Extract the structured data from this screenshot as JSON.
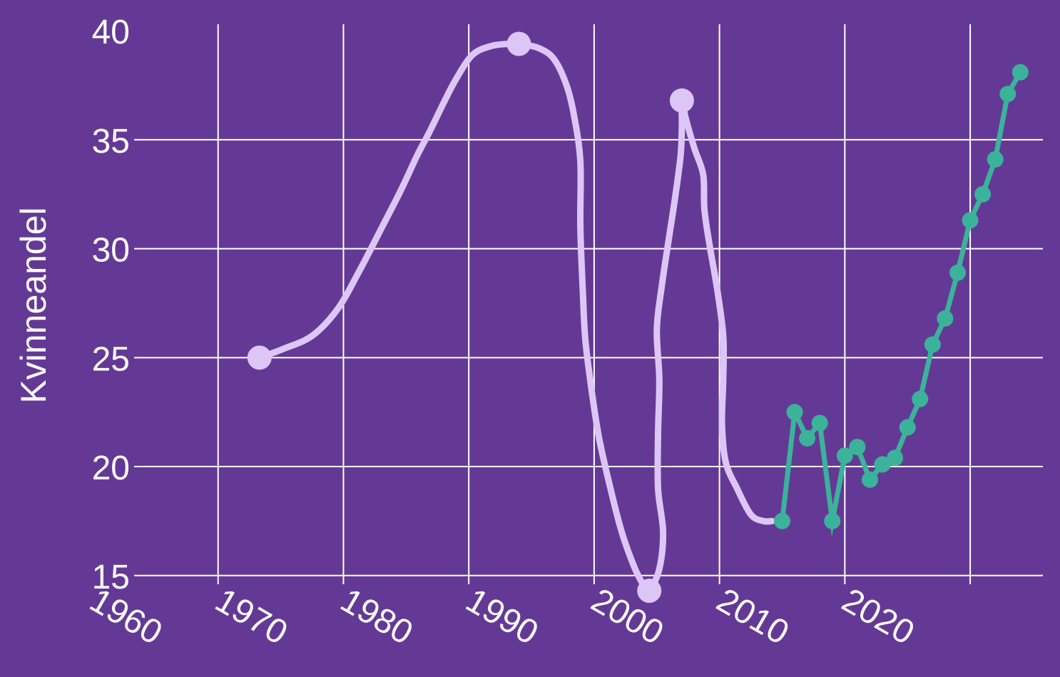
{
  "chart_data": {
    "type": "line",
    "ylabel": "Kvinneandel",
    "xlabel": "",
    "xlim": [
      1953.3,
      2025.8
    ],
    "ylim": [
      14.6,
      40.3
    ],
    "x_ticks": [
      "1960",
      "1970",
      "1980",
      "1990",
      "2000",
      "2010",
      "2020"
    ],
    "y_ticks": [
      "15",
      "20",
      "25",
      "30",
      "35",
      "40"
    ],
    "grid": true,
    "colors": {
      "background": "#643996",
      "grid": "#ffffff",
      "sketch": "#dcc6f6",
      "data": "#3bb39b"
    },
    "series": [
      {
        "style": "hand-drawn",
        "anchor_points": [
          {
            "x": 1963.3,
            "y": 25.0
          },
          {
            "x": 1984.0,
            "y": 39.4
          },
          {
            "x": 1994.4,
            "y": 14.3
          },
          {
            "x": 1997.0,
            "y": 36.8
          }
        ],
        "path": [
          [
            1963.3,
            25.0
          ],
          [
            1965.2,
            25.4
          ],
          [
            1967.5,
            26.0
          ],
          [
            1969.5,
            27.2
          ],
          [
            1971.2,
            28.9
          ],
          [
            1973.0,
            30.9
          ],
          [
            1974.6,
            32.7
          ],
          [
            1975.9,
            34.3
          ],
          [
            1976.9,
            35.4
          ],
          [
            1978.0,
            36.7
          ],
          [
            1979.0,
            37.8
          ],
          [
            1980.3,
            38.9
          ],
          [
            1981.8,
            39.3
          ],
          [
            1983.2,
            39.4
          ],
          [
            1984.0,
            39.4
          ],
          [
            1985.6,
            39.2
          ],
          [
            1986.8,
            38.7
          ],
          [
            1987.8,
            37.5
          ],
          [
            1988.4,
            36.1
          ],
          [
            1988.9,
            34.0
          ],
          [
            1988.9,
            31.0
          ],
          [
            1989.1,
            28.0
          ],
          [
            1989.3,
            25.8
          ],
          [
            1989.8,
            23.5
          ],
          [
            1990.4,
            21.3
          ],
          [
            1991.3,
            19.0
          ],
          [
            1992.2,
            17.0
          ],
          [
            1993.2,
            15.4
          ],
          [
            1994.0,
            14.5
          ],
          [
            1994.4,
            14.3
          ],
          [
            1995.2,
            15.3
          ],
          [
            1995.5,
            17.0
          ],
          [
            1995.1,
            19.0
          ],
          [
            1995.1,
            21.5
          ],
          [
            1995.2,
            24.0
          ],
          [
            1995.0,
            26.3
          ],
          [
            1995.4,
            28.3
          ],
          [
            1996.0,
            30.6
          ],
          [
            1996.5,
            32.5
          ],
          [
            1996.9,
            34.3
          ],
          [
            1997.0,
            35.6
          ],
          [
            1997.0,
            36.8
          ],
          [
            1997.3,
            36.0
          ],
          [
            1998.0,
            34.6
          ],
          [
            1998.7,
            33.4
          ],
          [
            1998.8,
            31.8
          ],
          [
            1999.2,
            30.2
          ],
          [
            1999.8,
            28.2
          ],
          [
            2000.3,
            26.0
          ],
          [
            2000.3,
            24.0
          ],
          [
            2000.2,
            22.0
          ],
          [
            2000.5,
            20.2
          ],
          [
            2001.4,
            19.0
          ],
          [
            2002.5,
            17.8
          ],
          [
            2003.5,
            17.5
          ],
          [
            2004.2,
            17.5
          ]
        ]
      },
      {
        "style": "line-with-markers",
        "x": [
          2005,
          2006,
          2007,
          2008,
          2009,
          2010,
          2011,
          2012,
          2013,
          2014,
          2015,
          2016,
          2017,
          2018,
          2019,
          2020,
          2021,
          2022,
          2023,
          2024
        ],
        "y": [
          17.5,
          22.5,
          21.3,
          22.0,
          17.5,
          20.5,
          20.9,
          19.4,
          20.1,
          20.4,
          21.8,
          23.1,
          25.6,
          26.8,
          28.9,
          31.3,
          32.5,
          34.1,
          37.1,
          38.1
        ]
      }
    ]
  }
}
